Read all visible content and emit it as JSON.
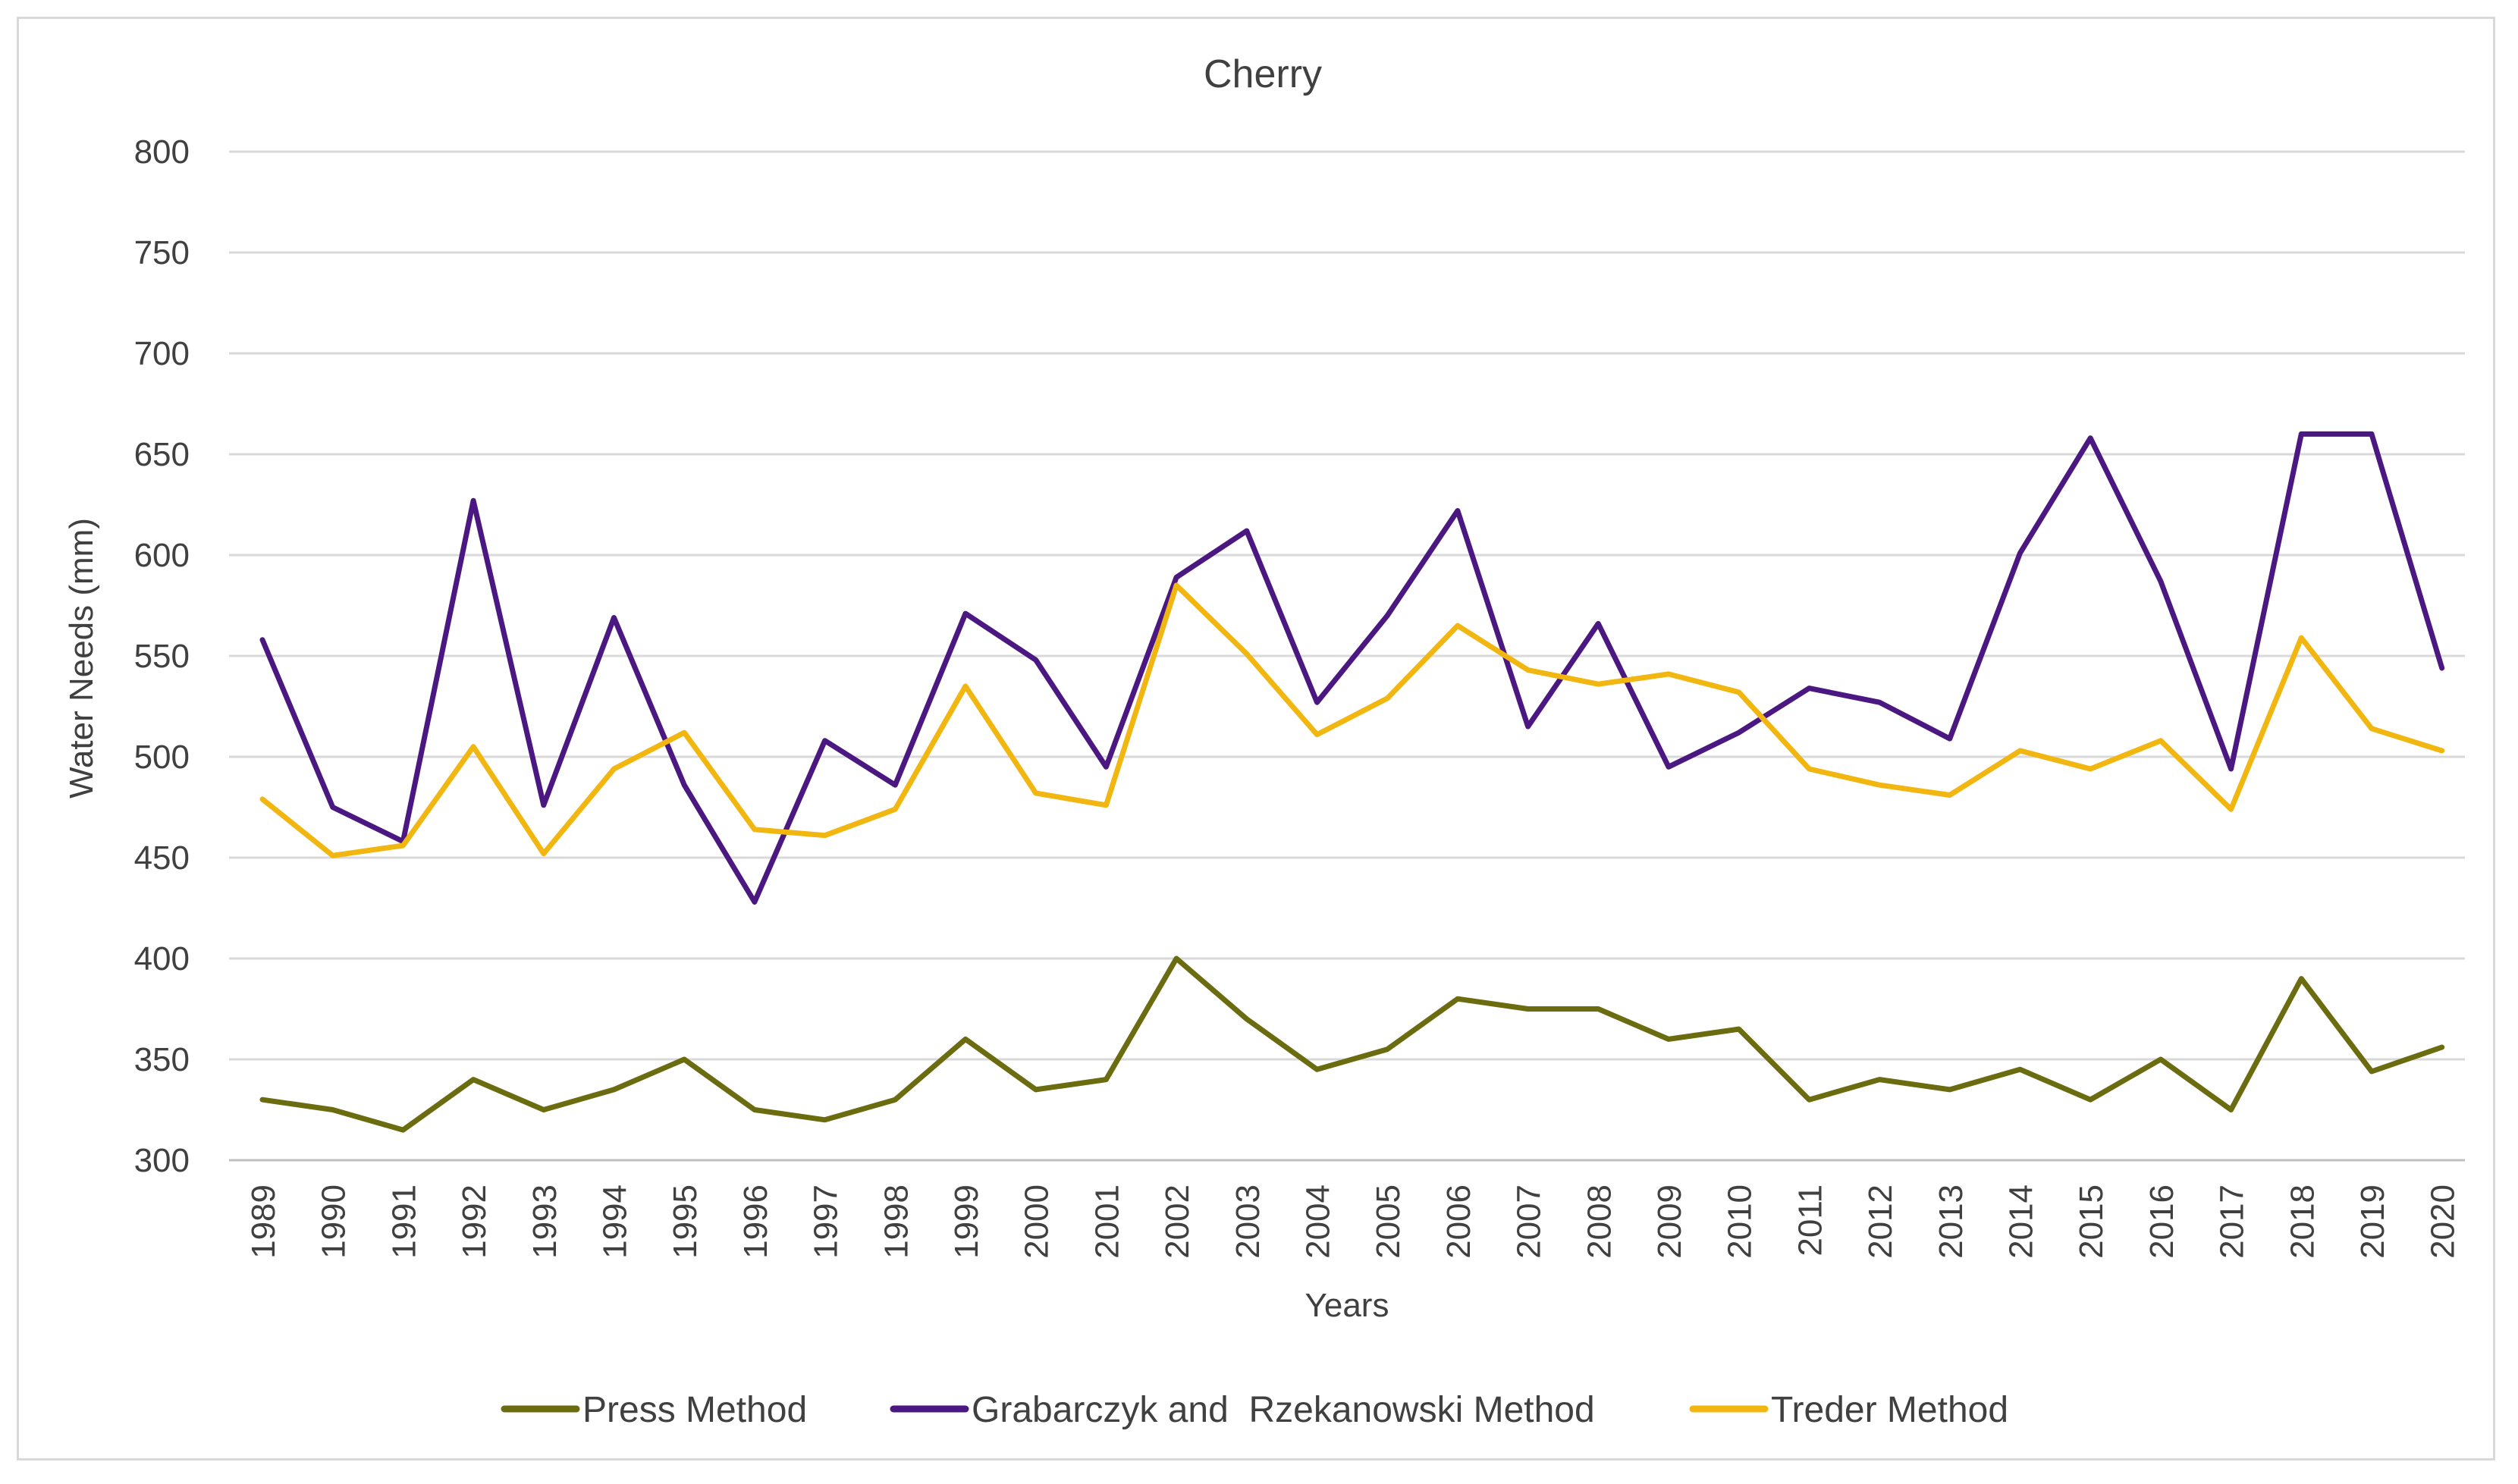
{
  "chart_data": {
    "type": "line",
    "title": "Cherry",
    "xlabel": "Years",
    "ylabel": "Water Needs (mm)",
    "ylim": [
      300,
      800
    ],
    "yticks": [
      "300",
      "350",
      "400",
      "450",
      "500",
      "550",
      "600",
      "650",
      "700",
      "750",
      "800"
    ],
    "grid": true,
    "legend_position": "bottom",
    "categories": [
      "1989",
      "1990",
      "1991",
      "1992",
      "1993",
      "1994",
      "1995",
      "1996",
      "1997",
      "1998",
      "1999",
      "2000",
      "2001",
      "2002",
      "2003",
      "2004",
      "2005",
      "2006",
      "2007",
      "2008",
      "2009",
      "2010",
      "2011",
      "2012",
      "2013",
      "2014",
      "2015",
      "2016",
      "2017",
      "2018",
      "2019",
      "2020"
    ],
    "series": [
      {
        "name": "Press Method",
        "color": "#6b6b0f",
        "values": [
          330,
          325,
          315,
          340,
          325,
          335,
          350,
          325,
          320,
          330,
          360,
          335,
          340,
          400,
          370,
          345,
          355,
          380,
          375,
          375,
          360,
          365,
          330,
          340,
          335,
          345,
          330,
          350,
          325,
          390,
          344,
          356
        ]
      },
      {
        "name": "Grabarczyk and  Rzekanowski Method",
        "color": "#4b1882",
        "values": [
          558,
          475,
          458,
          627,
          476,
          569,
          486,
          428,
          508,
          486,
          571,
          548,
          495,
          589,
          612,
          527,
          570,
          622,
          515,
          566,
          495,
          512,
          534,
          527,
          509,
          601,
          658,
          587,
          494,
          660,
          660,
          544
        ]
      },
      {
        "name": "Treder Method",
        "color": "#f2b611",
        "values": [
          479,
          451,
          456,
          505,
          452,
          494,
          512,
          464,
          461,
          474,
          535,
          482,
          476,
          585,
          551,
          511,
          529,
          565,
          543,
          536,
          541,
          532,
          494,
          486,
          481,
          503,
          494,
          508,
          474,
          559,
          514,
          503
        ]
      }
    ]
  }
}
